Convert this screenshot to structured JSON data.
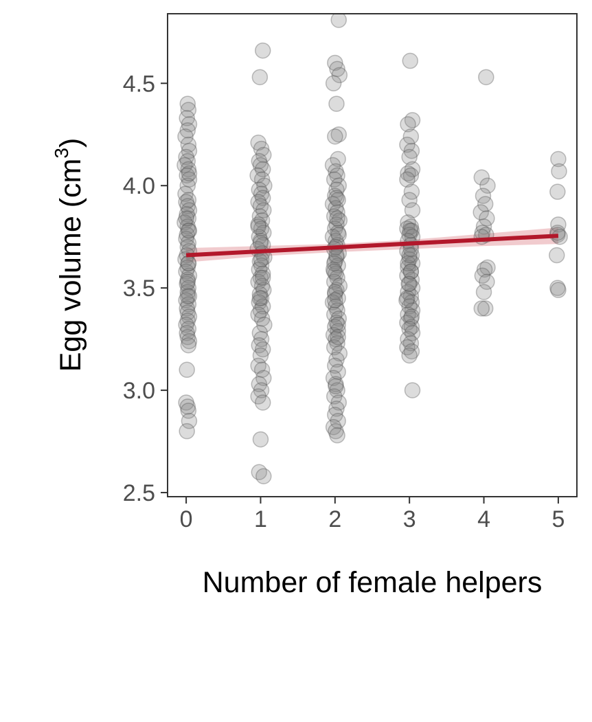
{
  "chart_data": {
    "type": "scatter",
    "title": "",
    "xlabel": "Number of female helpers",
    "ylabel": {
      "before": "Egg volume (cm",
      "superscript": "3",
      "after": ")"
    },
    "xlim": [
      -0.25,
      5.25
    ],
    "ylim": [
      2.48,
      4.84
    ],
    "x_ticks": [
      0,
      1,
      2,
      3,
      4,
      5
    ],
    "x_tick_labels": [
      "0",
      "1",
      "2",
      "3",
      "4",
      "5"
    ],
    "y_ticks": [
      2.5,
      3.0,
      3.5,
      4.0,
      4.5
    ],
    "y_tick_labels": [
      "2.5",
      "3.0",
      "3.5",
      "4.0",
      "4.5"
    ],
    "grid": false,
    "point_color": "#808080",
    "point_edge_color": "#4d4d4d",
    "fit_line_color": "#b2182b",
    "ribbon_color": "#e8a9ad",
    "series": [
      {
        "x": [
          0.02,
          0.03,
          0.01,
          0.04,
          0.02,
          -0.01,
          0.03,
          0.04,
          0.0,
          0.02,
          -0.02,
          0.03,
          0.01,
          0.04,
          0.02,
          -0.01,
          0.03,
          0.0,
          0.02,
          0.04,
          0.01,
          0.03,
          -0.02,
          0.02,
          0.04,
          0.01,
          0.0,
          0.03,
          0.02,
          0.04,
          0.01,
          -0.01,
          0.03,
          0.02,
          0.0,
          0.04,
          0.02,
          0.01,
          0.03,
          0.02,
          0.04,
          0.0,
          0.03,
          0.01,
          0.02,
          0.04,
          0.02,
          0.0,
          0.03,
          0.01,
          0.02,
          0.04,
          0.03,
          0.01,
          0.0,
          0.02,
          0.03,
          0.04,
          0.01,
          0.02,
          0.03,
          0.0,
          0.04,
          0.02,
          0.03
        ],
        "y": [
          4.4,
          4.37,
          4.33,
          4.3,
          4.27,
          4.24,
          4.2,
          4.17,
          4.14,
          4.12,
          4.1,
          4.08,
          4.05,
          4.03,
          4.0,
          3.96,
          3.93,
          3.92,
          3.9,
          3.88,
          3.86,
          3.84,
          3.82,
          3.8,
          3.78,
          3.76,
          3.74,
          3.72,
          3.7,
          3.68,
          3.66,
          3.64,
          3.62,
          3.6,
          3.58,
          3.56,
          3.54,
          3.52,
          3.5,
          3.48,
          3.46,
          3.44,
          3.42,
          3.4,
          3.38,
          3.36,
          3.34,
          3.32,
          3.3,
          3.28,
          3.26,
          3.24,
          3.22,
          3.1,
          2.94,
          2.92,
          2.9,
          2.85,
          2.8,
          3.46,
          3.62,
          3.84,
          4.06,
          3.53,
          3.78
        ]
      },
      {
        "x": [
          1.03,
          0.99,
          0.97,
          1.01,
          1.04,
          0.98,
          1.0,
          1.03,
          0.96,
          1.02,
          1.05,
          0.98,
          1.01,
          1.03,
          0.97,
          1.0,
          1.04,
          0.99,
          1.02,
          0.97,
          1.01,
          1.04,
          0.98,
          1.0,
          1.03,
          0.96,
          1.02,
          1.05,
          0.99,
          1.01,
          0.98,
          1.03,
          1.0,
          0.97,
          1.02,
          1.04,
          0.99,
          1.01,
          0.98,
          1.03,
          1.0,
          0.97,
          1.02,
          1.05,
          0.99,
          1.01,
          0.98,
          1.03,
          1.0,
          0.97,
          1.02,
          1.04,
          0.98,
          1.01,
          0.97,
          1.03,
          1.0,
          0.98,
          1.04,
          1.01,
          0.97,
          1.03,
          1.0,
          0.99
        ],
        "y": [
          4.66,
          4.53,
          4.21,
          4.18,
          4.15,
          4.12,
          4.1,
          4.08,
          4.05,
          4.03,
          4.0,
          3.98,
          3.96,
          3.94,
          3.92,
          3.9,
          3.88,
          3.85,
          3.83,
          3.81,
          3.79,
          3.77,
          3.75,
          3.73,
          3.71,
          3.69,
          3.67,
          3.65,
          3.63,
          3.61,
          3.59,
          3.57,
          3.55,
          3.53,
          3.51,
          3.49,
          3.47,
          3.45,
          3.43,
          3.41,
          3.39,
          3.37,
          3.35,
          3.32,
          3.28,
          3.25,
          3.22,
          3.2,
          3.17,
          3.12,
          3.1,
          3.06,
          3.03,
          3.0,
          2.97,
          2.94,
          2.76,
          2.6,
          2.58,
          3.64,
          3.8,
          3.55,
          3.72,
          3.45
        ]
      },
      {
        "x": [
          2.05,
          2.0,
          2.03,
          2.06,
          1.98,
          2.02,
          2.05,
          2.0,
          2.04,
          1.97,
          2.01,
          2.03,
          1.99,
          2.05,
          2.02,
          2.0,
          2.04,
          1.97,
          2.01,
          2.03,
          1.99,
          2.06,
          2.02,
          2.0,
          2.04,
          1.97,
          2.01,
          2.03,
          1.99,
          2.05,
          2.02,
          2.0,
          2.04,
          1.98,
          2.01,
          2.03,
          1.99,
          2.06,
          2.02,
          2.0,
          2.04,
          1.97,
          2.01,
          2.03,
          1.99,
          2.05,
          2.02,
          2.0,
          2.04,
          1.98,
          2.01,
          2.03,
          1.99,
          2.06,
          2.02,
          2.0,
          2.04,
          1.98,
          2.01,
          2.03,
          1.99,
          2.05,
          2.02,
          2.0,
          2.04,
          1.98,
          2.01,
          2.03,
          1.99,
          2.05,
          2.02,
          2.0,
          2.04,
          2.01,
          2.03,
          1.99,
          2.0,
          2.02,
          2.04,
          2.01
        ],
        "y": [
          4.81,
          4.6,
          4.57,
          4.54,
          4.5,
          4.4,
          4.25,
          4.24,
          4.13,
          4.1,
          4.07,
          4.05,
          4.03,
          4.0,
          3.98,
          3.95,
          3.93,
          3.91,
          3.89,
          3.87,
          3.85,
          3.83,
          3.81,
          3.79,
          3.77,
          3.75,
          3.73,
          3.71,
          3.69,
          3.67,
          3.65,
          3.63,
          3.61,
          3.59,
          3.57,
          3.55,
          3.53,
          3.51,
          3.49,
          3.47,
          3.45,
          3.43,
          3.41,
          3.39,
          3.37,
          3.35,
          3.33,
          3.31,
          3.29,
          3.27,
          3.25,
          3.23,
          3.21,
          3.18,
          3.15,
          3.12,
          3.09,
          3.06,
          3.03,
          3.0,
          2.97,
          2.94,
          2.91,
          2.88,
          2.85,
          2.82,
          2.8,
          2.78,
          3.62,
          3.76,
          3.94,
          3.48,
          3.32,
          3.7,
          3.84,
          3.58,
          3.44,
          3.66,
          3.26,
          3.02
        ]
      },
      {
        "x": [
          3.01,
          3.04,
          2.98,
          3.02,
          2.97,
          3.03,
          3.0,
          3.04,
          2.98,
          3.02,
          2.97,
          3.03,
          3.0,
          3.04,
          2.98,
          3.02,
          2.97,
          3.03,
          3.0,
          3.04,
          2.98,
          3.02,
          2.97,
          3.03,
          3.0,
          3.04,
          2.98,
          3.02,
          2.97,
          3.03,
          3.0,
          3.04,
          2.98,
          3.02,
          2.97,
          3.03,
          3.0,
          3.04,
          2.98,
          3.02,
          2.97,
          3.03,
          3.0,
          3.04,
          2.98,
          3.02,
          2.97,
          3.03,
          3.0,
          3.04,
          2.98,
          3.02,
          2.96,
          3.01,
          3.03,
          2.99,
          3.02,
          3.0
        ],
        "y": [
          4.61,
          4.32,
          4.3,
          4.24,
          4.2,
          4.17,
          4.14,
          4.08,
          4.06,
          4.05,
          4.03,
          3.97,
          3.93,
          3.88,
          3.82,
          3.8,
          3.79,
          3.78,
          3.76,
          3.75,
          3.73,
          3.71,
          3.68,
          3.66,
          3.64,
          3.62,
          3.6,
          3.58,
          3.56,
          3.54,
          3.52,
          3.5,
          3.48,
          3.46,
          3.45,
          3.43,
          3.41,
          3.39,
          3.37,
          3.35,
          3.33,
          3.31,
          3.3,
          3.28,
          3.25,
          3.23,
          3.21,
          3.19,
          3.17,
          3.0,
          3.62,
          3.69,
          3.44,
          3.78,
          3.36,
          3.52,
          3.58,
          3.66
        ]
      },
      {
        "x": [
          4.03,
          3.97,
          4.05,
          3.99,
          4.02,
          3.96,
          4.04,
          4.0,
          3.98,
          4.03,
          3.97,
          4.05,
          4.01,
          3.98,
          4.04,
          4.0,
          4.02,
          3.97
        ],
        "y": [
          4.53,
          4.04,
          4.0,
          3.95,
          3.91,
          3.87,
          3.84,
          3.8,
          3.77,
          3.76,
          3.75,
          3.6,
          3.59,
          3.56,
          3.53,
          3.48,
          3.4,
          3.4
        ]
      },
      {
        "x": [
          5.0,
          5.01,
          4.99,
          5.0,
          4.99,
          5.02,
          4.98,
          4.99,
          5.0,
          4.99
        ],
        "y": [
          4.13,
          4.07,
          3.97,
          3.81,
          3.76,
          3.75,
          3.66,
          3.5,
          3.49,
          3.77
        ]
      }
    ],
    "fit_line": {
      "x": [
        0,
        5
      ],
      "y": [
        3.66,
        3.755
      ]
    },
    "confidence_band": {
      "x": [
        0,
        1,
        2,
        3,
        4,
        5
      ],
      "lower": [
        3.625,
        3.655,
        3.675,
        3.69,
        3.705,
        3.715
      ],
      "upper": [
        3.695,
        3.705,
        3.715,
        3.735,
        3.765,
        3.795
      ]
    }
  }
}
